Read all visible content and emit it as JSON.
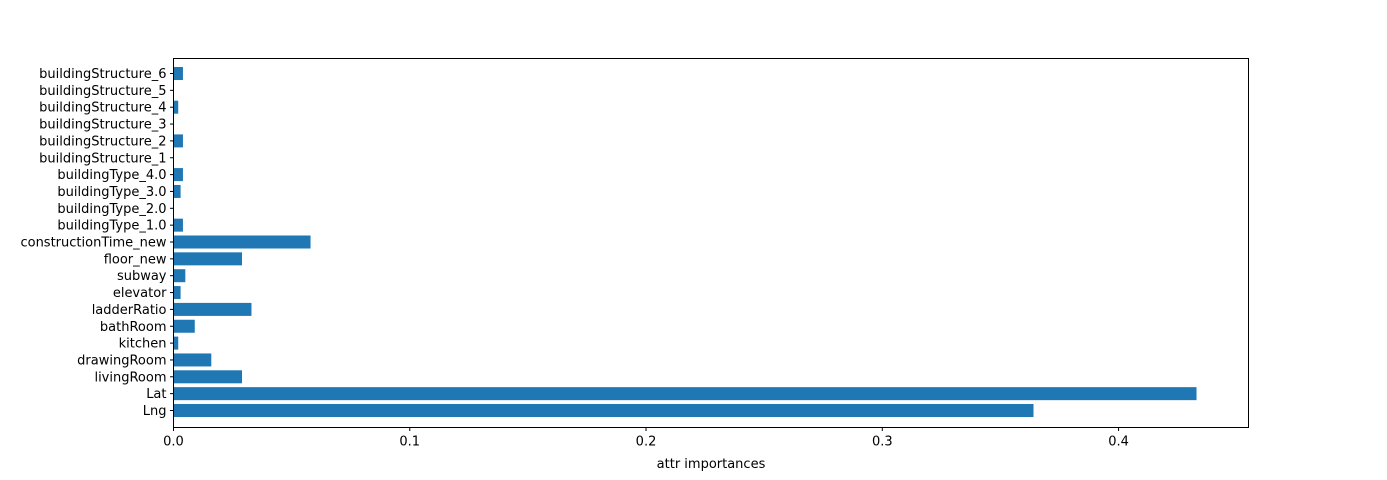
{
  "chart_data": {
    "type": "bar",
    "orientation": "horizontal",
    "title": "",
    "xlabel": "attr importances",
    "ylabel": "",
    "xlim": [
      0,
      0.455
    ],
    "xticks": [
      0.0,
      0.1,
      0.2,
      0.3,
      0.4
    ],
    "xtick_labels": [
      "0.0",
      "0.1",
      "0.2",
      "0.3",
      "0.4"
    ],
    "grid": false,
    "bar_color": "#1f77b4",
    "categories": [
      "Lng",
      "Lat",
      "livingRoom",
      "drawingRoom",
      "kitchen",
      "bathRoom",
      "ladderRatio",
      "elevator",
      "subway",
      "floor_new",
      "constructionTime_new",
      "buildingType_1.0",
      "buildingType_2.0",
      "buildingType_3.0",
      "buildingType_4.0",
      "buildingStructure_1",
      "buildingStructure_2",
      "buildingStructure_3",
      "buildingStructure_4",
      "buildingStructure_5",
      "buildingStructure_6"
    ],
    "values": [
      0.364,
      0.433,
      0.029,
      0.016,
      0.002,
      0.009,
      0.033,
      0.003,
      0.005,
      0.029,
      0.058,
      0.004,
      0.0,
      0.003,
      0.004,
      0.0,
      0.004,
      0.0,
      0.002,
      0.0,
      0.004
    ]
  }
}
